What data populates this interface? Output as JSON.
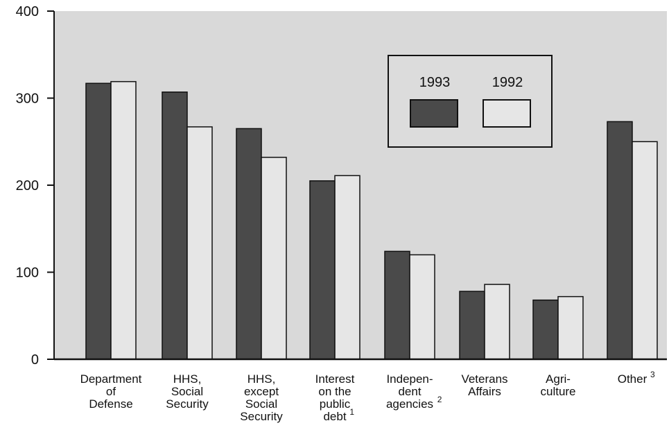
{
  "chart_data": {
    "type": "bar",
    "title": "",
    "xlabel": "",
    "ylabel": "",
    "ylim": [
      0,
      400
    ],
    "yticks": [
      0,
      100,
      200,
      300,
      400
    ],
    "grid": false,
    "legend_placement": "top-right",
    "categories": [
      {
        "lines": [
          "Department",
          "of",
          "Defense"
        ],
        "note": ""
      },
      {
        "lines": [
          "HHS,",
          "Social",
          "Security"
        ],
        "note": ""
      },
      {
        "lines": [
          "HHS,",
          "except",
          "Social",
          "Security"
        ],
        "note": ""
      },
      {
        "lines": [
          "Interest",
          "on the",
          "public",
          "debt"
        ],
        "note": "1"
      },
      {
        "lines": [
          "Indepen-",
          "dent",
          "agencies"
        ],
        "note": "2"
      },
      {
        "lines": [
          "Veterans",
          "Affairs"
        ],
        "note": ""
      },
      {
        "lines": [
          "Agri-",
          "culture"
        ],
        "note": ""
      },
      {
        "lines": [
          "Other"
        ],
        "note": "3"
      }
    ],
    "series": [
      {
        "name": "1993",
        "color": "#4a4a4a",
        "values": [
          317,
          307,
          265,
          205,
          124,
          78,
          68,
          273
        ]
      },
      {
        "name": "1992",
        "color": "#e6e6e6",
        "values": [
          319,
          267,
          232,
          211,
          120,
          86,
          72,
          250
        ]
      }
    ]
  },
  "colors": {
    "plot_background": "#d9d9d9",
    "axis": "#111111"
  }
}
